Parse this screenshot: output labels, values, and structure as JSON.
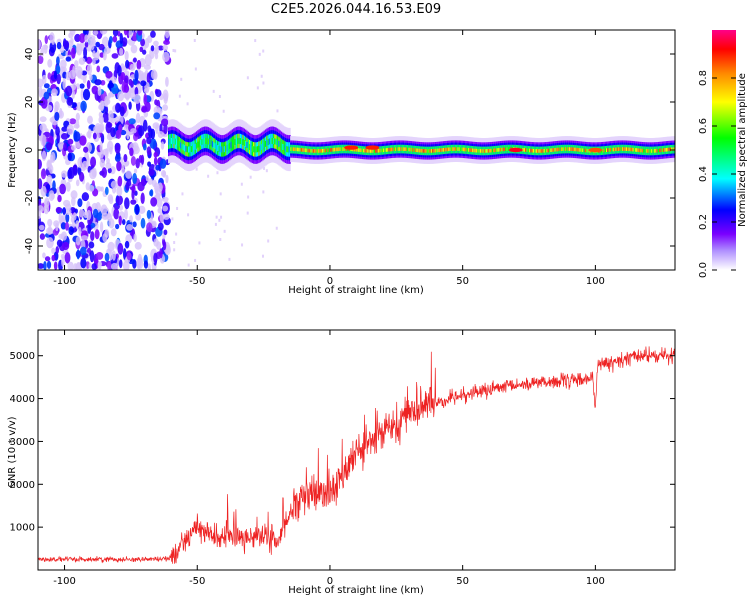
{
  "title": "C2E5.2026.044.16.53.E09",
  "colors": {
    "snr_line": "#ee2222",
    "scatter": "#7b1de0",
    "axis": "#000000"
  },
  "chart_data": [
    {
      "type": "heatmap",
      "title": "C2E5.2026.044.16.53.E09",
      "xlabel": "Height of straight line (km)",
      "ylabel": "Frequency (Hz)",
      "xlim": [
        -110,
        130
      ],
      "ylim": [
        -50,
        50
      ],
      "x_ticks": [
        -100,
        -50,
        0,
        50,
        100
      ],
      "y_ticks": [
        -40,
        -20,
        0,
        20,
        40
      ],
      "colorbar": {
        "label": "Normalized spectral amplitude",
        "range": [
          0,
          1
        ],
        "ticks": [
          "0.0",
          "0.2",
          "0.4",
          "0.6",
          "0.8"
        ],
        "colormap": [
          "#ffffff",
          "#7a00ff",
          "#0000ff",
          "#00ffff",
          "#00ff00",
          "#ffff00",
          "#ff8800",
          "#ff0000",
          "#ff0088"
        ]
      },
      "regions": [
        {
          "x_range": [
            -110,
            -61
          ],
          "description": "scattered noise spanning full frequency range",
          "amplitude": [
            0.1,
            0.3
          ]
        },
        {
          "x_range": [
            -61,
            -15
          ],
          "freq_center": 2,
          "freq_halfwidth": 5,
          "amplitude": [
            0.3,
            0.6
          ]
        },
        {
          "x_range": [
            -15,
            130
          ],
          "freq_center": 0,
          "freq_halfwidth": 3,
          "amplitude": [
            0.5,
            0.9
          ]
        }
      ],
      "peak_points": [
        {
          "x": 8,
          "y": 1,
          "amplitude": 0.85
        },
        {
          "x": 16,
          "y": 1,
          "amplitude": 0.85
        },
        {
          "x": 70,
          "y": 0,
          "amplitude": 0.9
        },
        {
          "x": 100,
          "y": 0,
          "amplitude": 0.8
        }
      ]
    },
    {
      "type": "line",
      "xlabel": "Height of straight line (km)",
      "ylabel": "SNR (10 * v/v)",
      "xlim": [
        -110,
        130
      ],
      "ylim": [
        0,
        5600
      ],
      "x_ticks": [
        -100,
        -50,
        0,
        50,
        100
      ],
      "y_ticks": [
        1000,
        2000,
        3000,
        4000,
        5000
      ],
      "series": [
        {
          "x": [
            -110,
            -90,
            -70,
            -60,
            -55,
            -52,
            -50,
            -48,
            -45,
            -40,
            -35,
            -30,
            -25,
            -20,
            -17,
            -15,
            -12,
            -10,
            -5,
            0,
            5,
            10,
            20,
            30,
            40,
            50,
            60,
            70,
            80,
            90,
            95,
            99,
            100,
            101,
            102,
            105,
            110,
            115,
            120,
            125,
            130
          ],
          "y": [
            250,
            250,
            250,
            270,
            700,
            900,
            1000,
            900,
            800,
            750,
            800,
            750,
            750,
            650,
            1000,
            1400,
            1500,
            1700,
            1700,
            1900,
            2200,
            2700,
            3200,
            3700,
            3900,
            4100,
            4200,
            4300,
            4400,
            4400,
            4450,
            4500,
            3800,
            4900,
            4800,
            4800,
            4900,
            5000,
            5000,
            5000,
            5000
          ]
        }
      ]
    }
  ]
}
